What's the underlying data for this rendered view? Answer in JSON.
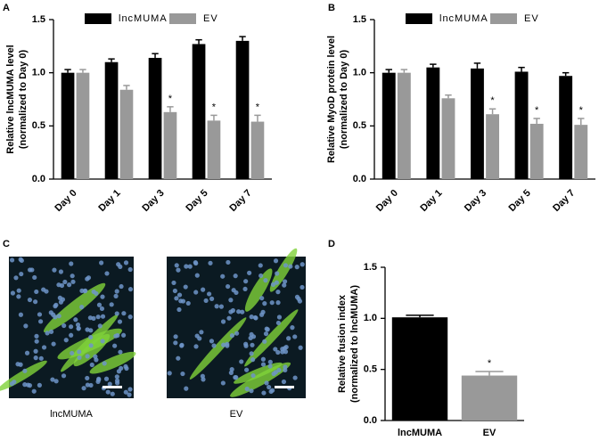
{
  "figure": {
    "panel_labels": [
      "A",
      "B",
      "C",
      "D"
    ],
    "images": [
      {
        "caption": "lncMUMA"
      },
      {
        "caption": "EV"
      }
    ]
  },
  "chart_data": [
    {
      "type": "bar",
      "ylabel": [
        "Relative lncMUMA level",
        "(normalized to Day 0)"
      ],
      "categories": [
        "Day 0",
        "Day 1",
        "Day 3",
        "Day 5",
        "Day 7"
      ],
      "series": [
        {
          "name": "lncMUMA",
          "color": "#000000",
          "values": [
            1.0,
            1.1,
            1.14,
            1.27,
            1.3
          ],
          "errors": [
            0.03,
            0.03,
            0.04,
            0.04,
            0.04
          ]
        },
        {
          "name": "EV",
          "color": "#999999",
          "values": [
            1.0,
            0.84,
            0.63,
            0.55,
            0.54
          ],
          "errors": [
            0.03,
            0.04,
            0.05,
            0.05,
            0.06
          ],
          "annotations": [
            null,
            null,
            "*",
            "*",
            "*"
          ]
        }
      ],
      "ylim": [
        0,
        1.5
      ],
      "yticks": [
        {
          "value": 0,
          "label": "0.0"
        },
        {
          "value": 0.5,
          "label": "0.5"
        },
        {
          "value": 1,
          "label": "1.0"
        },
        {
          "value": 1.5,
          "label": "1.5"
        }
      ]
    },
    {
      "type": "bar",
      "ylabel": [
        "Relative MyoD protein level",
        "(normalized to Day 0)"
      ],
      "categories": [
        "Day 0",
        "Day 1",
        "Day 3",
        "Day 5",
        "Day 7"
      ],
      "series": [
        {
          "name": "lncMUMA",
          "color": "#000000",
          "values": [
            1.0,
            1.05,
            1.04,
            1.01,
            0.97
          ],
          "errors": [
            0.03,
            0.03,
            0.05,
            0.04,
            0.03
          ]
        },
        {
          "name": "EV",
          "color": "#999999",
          "values": [
            1.0,
            0.76,
            0.61,
            0.52,
            0.51
          ],
          "errors": [
            0.03,
            0.03,
            0.05,
            0.05,
            0.06
          ],
          "annotations": [
            null,
            null,
            "*",
            "*",
            "*"
          ]
        }
      ],
      "ylim": [
        0,
        1.5
      ],
      "yticks": [
        {
          "value": 0,
          "label": "0.0"
        },
        {
          "value": 0.5,
          "label": "0.5"
        },
        {
          "value": 1,
          "label": "1.0"
        },
        {
          "value": 1.5,
          "label": "1.5"
        }
      ]
    },
    {
      "type": "bar",
      "ylabel": [
        "Relative fusion index",
        "(normalized to lncMUMA)"
      ],
      "categories": [
        "lncMUMA",
        "EV"
      ],
      "values": [
        1.01,
        0.44
      ],
      "errors": [
        0.02,
        0.04
      ],
      "colors": [
        "#000000",
        "#999999"
      ],
      "annotations": [
        null,
        "*"
      ],
      "ylim": [
        0,
        1.5
      ],
      "yticks": [
        {
          "value": 0,
          "label": "0.0"
        },
        {
          "value": 0.5,
          "label": "0.5"
        },
        {
          "value": 1,
          "label": "1.0"
        },
        {
          "value": 1.5,
          "label": "1.5"
        }
      ]
    }
  ]
}
